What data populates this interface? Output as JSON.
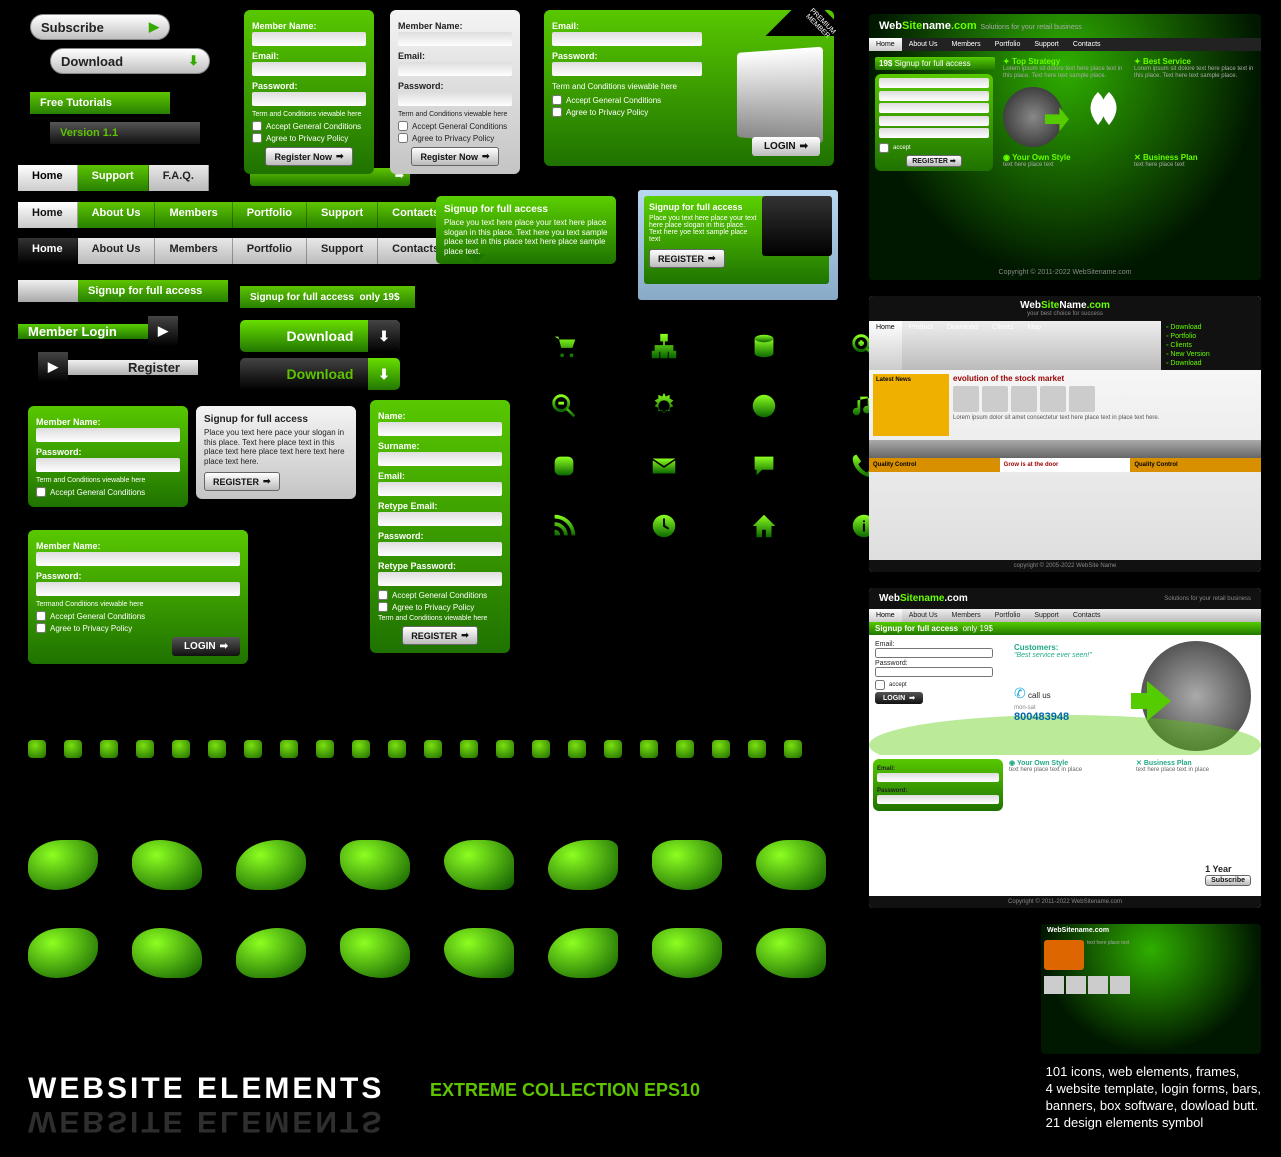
{
  "colors": {
    "green_a": "#6ddb00",
    "green_b": "#2a8800",
    "green_c": "#1f7200",
    "silver_a": "#f4f4f4",
    "silver_b": "#c0c0c0",
    "dark_a": "#555555",
    "dark_b": "#111111",
    "accent": "#5ec400"
  },
  "buttons": {
    "subscribe": "Subscribe",
    "download": "Download",
    "free_tutorials": "Free Tutorials",
    "version": "Version 1.1",
    "download_big": "Download"
  },
  "tabs_short": [
    "Home",
    "Support",
    "F.A.Q."
  ],
  "nav_green": [
    "Home",
    "About Us",
    "Members",
    "Portfolio",
    "Support",
    "Contacts"
  ],
  "nav_silver": [
    "Home",
    "About Us",
    "Members",
    "Portfolio",
    "Support",
    "Contacts"
  ],
  "signup_bar": {
    "text": "Signup for full access"
  },
  "signup_price": {
    "text": "Signup for full access",
    "price": "only 19$"
  },
  "member_login": "Member Login",
  "register": "Register",
  "register_btn": "REGISTER",
  "register_now": "Register Now",
  "login_btn": "LOGIN",
  "form1": {
    "member_name": "Member Name:",
    "email": "Email:",
    "password": "Password:",
    "terms": "Term and Conditions viewable here",
    "chk1": "Accept General Conditions",
    "chk2": "Agree to Privacy Policy"
  },
  "form_big": {
    "email": "Email:",
    "password": "Password:",
    "terms": "Term and Conditions viewable here",
    "chk1": "Accept General Conditions",
    "chk2": "Agree to Privacy Policy",
    "badge": "PREMIUM MEMBER"
  },
  "form_reg": {
    "name": "Name:",
    "surname": "Surname:",
    "email": "Email:",
    "retype_email": "Retype Email:",
    "password": "Password:",
    "retype_password": "Retype Password:",
    "chk1": "Accept General Conditions",
    "chk2": "Agree to Privacy Policy",
    "terms": "Term and Conditions viewable here"
  },
  "form_login_panel": {
    "member_name": "Member Name:",
    "password": "Password:",
    "terms": "Term and Conditions viewable here",
    "chk1": "Accept General Conditions"
  },
  "form_login_panel2": {
    "member_name": "Member Name:",
    "password": "Password:",
    "terms": "Termand Conditions viewable here",
    "chk1": "Accept General Conditions",
    "chk2": "Agree to Privacy Policy"
  },
  "signup_box": {
    "title": "Signup for full access",
    "body": "Place you text here pace your slogan in this place. Text here place text in this place text here place text here text here place text here."
  },
  "callout": {
    "title": "Signup for full access",
    "body": "Place you text here place your text here place slogan in this place. Text here you text sample place text in this place text here place sample place text."
  },
  "callout2": {
    "title": "Signup for full access",
    "body": "Place you text here place your text here place slogan in this place. Text here yoe text sample place text"
  },
  "icons_main": [
    "cart",
    "sitemap",
    "database",
    "zoom-in",
    "zoom-out",
    "gear",
    "pie",
    "music",
    "app",
    "mail",
    "chat-bubble",
    "phone",
    "rss",
    "clock",
    "home",
    "info"
  ],
  "icons_small_count": 22,
  "shapes_count": 16,
  "mini1": {
    "title": "WebSitename.com",
    "tagline": "Solutions for your retail business",
    "nav": [
      "Home",
      "About Us",
      "Members",
      "Portfolio",
      "Support",
      "Contacts"
    ],
    "price_badge": "19$",
    "signup": "Signup for full access",
    "h1": "Top Strategy",
    "h2": "Best Service",
    "h3": "Your Own Style",
    "h4": "Business Plan",
    "copyright": "Copyright © 2011-2022 WebSitename.com"
  },
  "mini2": {
    "title": "WebSiteName.com",
    "tagline": "your best choice for success",
    "nav": [
      "Home",
      "Product",
      "Download",
      "Clients",
      "Map"
    ],
    "side": [
      "Download",
      "Portfolio",
      "Clients",
      "New Version",
      "Download"
    ],
    "latest": "Latest News",
    "headline": "evolution of the stock market",
    "h1": "Quality Control",
    "h2": "Grow is at the door",
    "h3": "Quality Control",
    "copyright": "copyright © 2005-2022 WebSite Name"
  },
  "mini3": {
    "title": "WebSitename.com",
    "tagline": "Solutions for your retail business",
    "nav": [
      "Home",
      "About Us",
      "Members",
      "Portfolio",
      "Support",
      "Contacts"
    ],
    "signup": "Signup for full access",
    "price": "only 19$",
    "email": "Email:",
    "password": "Password:",
    "customers": "Customers:",
    "quote": "\"Best service ever seen!\"",
    "call": "call us",
    "hours": "mon-sat",
    "phone": "800483948",
    "h1": "Your Own Style",
    "h2": "Business Plan",
    "year": "1 Year",
    "subscribe": "Subscribe",
    "copyright": "Copyright © 2011-2022 WebSitename.com"
  },
  "footer": {
    "title": "WEBSITE ELEMENTS",
    "ext": "EXTREME COLLECTION EPS10",
    "right": "101 icons, web elements, frames,\n4 website template, login forms, bars,\nbanners, box software, dowload butt.\n21 design elements symbol"
  }
}
